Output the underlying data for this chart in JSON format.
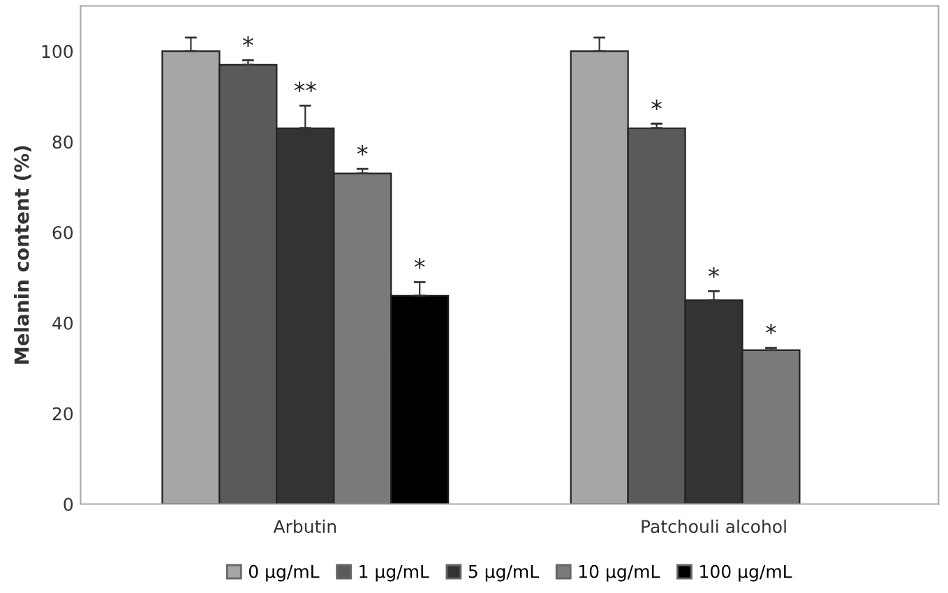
{
  "chart_data": {
    "type": "bar",
    "ylabel": "Melanin content (%)",
    "categories": [
      "Arbutin",
      "Patchouli alcohol"
    ],
    "series": [
      {
        "name": "0 μg/mL",
        "color": "#a6a6a6",
        "values": [
          100,
          100
        ],
        "errors": [
          3,
          3
        ]
      },
      {
        "name": "1 μg/mL",
        "color": "#5a5a5a",
        "values": [
          97,
          83
        ],
        "errors": [
          1,
          1
        ],
        "value_labels": [
          "*",
          "*"
        ]
      },
      {
        "name": "5 μg/mL",
        "color": "#333333",
        "values": [
          83,
          45
        ],
        "errors": [
          5,
          2
        ],
        "value_labels": [
          "**",
          "*"
        ]
      },
      {
        "name": "10 μg/mL",
        "color": "#7a7a7a",
        "values": [
          73,
          34
        ],
        "errors": [
          1,
          0.5
        ],
        "value_labels": [
          "*",
          "*"
        ]
      },
      {
        "name": "100 μg/mL",
        "color": "#000000",
        "values": [
          46,
          null
        ],
        "errors": [
          3,
          null
        ],
        "value_labels": [
          "*",
          null
        ]
      }
    ],
    "ylim": [
      0,
      110
    ],
    "yticks": [
      0,
      20,
      40,
      60,
      80,
      100
    ],
    "grid": false,
    "legend": "bottom"
  }
}
